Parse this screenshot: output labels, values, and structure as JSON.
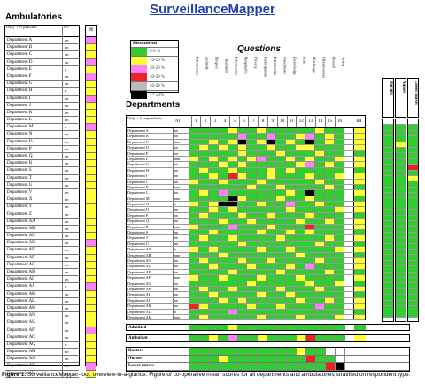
{
  "title": "SurveillanceMapper",
  "ambulatories": {
    "heading": "Ambulatories",
    "col_name": "Only > 9 patients",
    "col_n": "Nr",
    "col_pi": "PI",
    "rows": [
      {
        "name": "Department A",
        "n": "nn",
        "pi": "#ff80ff"
      },
      {
        "name": "Department B",
        "n": "nn",
        "pi": "#ffff33"
      },
      {
        "name": "Department C",
        "n": "nn",
        "pi": "#ffff33"
      },
      {
        "name": "Department D",
        "n": "nn",
        "pi": "#ff80ff"
      },
      {
        "name": "Department E",
        "n": "n",
        "pi": "#ffff33"
      },
      {
        "name": "Department F",
        "n": "nn",
        "pi": "#ff80ff"
      },
      {
        "name": "Department G",
        "n": "nn",
        "pi": "#ffff33"
      },
      {
        "name": "Department H",
        "n": "n",
        "pi": "#ffff33"
      },
      {
        "name": "Department I",
        "n": "nn",
        "pi": "#ff80ff"
      },
      {
        "name": "Department J",
        "n": "nn",
        "pi": "#ffff33"
      },
      {
        "name": "Department K",
        "n": "nn",
        "pi": "#ffff33"
      },
      {
        "name": "Department L",
        "n": "nn",
        "pi": "#ffff33"
      },
      {
        "name": "Department M",
        "n": "n",
        "pi": "#ff80ff"
      },
      {
        "name": "Department N",
        "n": "nn",
        "pi": "#ffff33"
      },
      {
        "name": "Department O",
        "n": "nn",
        "pi": "#ffff33"
      },
      {
        "name": "Department P",
        "n": "nn",
        "pi": "#ffff33"
      },
      {
        "name": "Department Q",
        "n": "nn",
        "pi": "#ffff33"
      },
      {
        "name": "Department R",
        "n": "nn",
        "pi": "#ffff33"
      },
      {
        "name": "Department S",
        "n": "nn",
        "pi": "#ffff33"
      },
      {
        "name": "Department T",
        "n": "nn",
        "pi": "#ffff33"
      },
      {
        "name": "Department U",
        "n": "nn",
        "pi": "#ffff33"
      },
      {
        "name": "Department V",
        "n": "nn",
        "pi": "#ffff33"
      },
      {
        "name": "Department X",
        "n": "nn",
        "pi": "#ffff33"
      },
      {
        "name": "Department Y",
        "n": "nn",
        "pi": "#ffff33"
      },
      {
        "name": "Department Z",
        "n": "nn",
        "pi": "#ffff33"
      },
      {
        "name": "Department AA",
        "n": "nn",
        "pi": "#ffff33"
      },
      {
        "name": "Department AB",
        "n": "nn",
        "pi": "#ffff33"
      },
      {
        "name": "Department AC",
        "n": "nn",
        "pi": "#ffff33"
      },
      {
        "name": "Department AD",
        "n": "nn",
        "pi": "#ff80ff"
      },
      {
        "name": "Department AE",
        "n": "nn",
        "pi": "#ffff33"
      },
      {
        "name": "Department AF",
        "n": "nn",
        "pi": "#ffff33"
      },
      {
        "name": "Department AG",
        "n": "nn",
        "pi": "#ffff33"
      },
      {
        "name": "Department AH",
        "n": "nn",
        "pi": "#ffff33"
      },
      {
        "name": "Department AI",
        "n": "nn",
        "pi": "#ffff33"
      },
      {
        "name": "Department AJ",
        "n": "n",
        "pi": "#ff80ff"
      },
      {
        "name": "Department AK",
        "n": "nn",
        "pi": "#ffff33"
      },
      {
        "name": "Department AL",
        "n": "nn",
        "pi": "#ffff33"
      },
      {
        "name": "Department AM",
        "n": "nn",
        "pi": "#ffff33"
      },
      {
        "name": "Department AN",
        "n": "nn",
        "pi": "#ffff33"
      },
      {
        "name": "Department AU",
        "n": "nn",
        "pi": "#ffff33"
      },
      {
        "name": "Department AF",
        "n": "nn",
        "pi": "#ff80ff"
      },
      {
        "name": "Department AO",
        "n": "nn",
        "pi": "#ffff33"
      },
      {
        "name": "Department AQ",
        "n": "n",
        "pi": "#ffff33"
      },
      {
        "name": "Department AR",
        "n": "nn",
        "pi": "#ffff33"
      },
      {
        "name": "Department AS",
        "n": "nn",
        "pi": "#ffff33"
      },
      {
        "name": "Department AT",
        "n": "nn",
        "pi": "#ff80ff"
      },
      {
        "name": "Department AU",
        "n": "nn",
        "pi": "#ffff33"
      }
    ]
  },
  "legend": {
    "title": "Dissatisfied",
    "items": [
      {
        "label": "0-9 %",
        "color": "#33cc33"
      },
      {
        "label": "10-19 %",
        "color": "#ffff33"
      },
      {
        "label": "20-29 %",
        "color": "#ff80ff"
      },
      {
        "label": "30-39 %",
        "color": "#ee2222"
      },
      {
        "label": "40-49 %",
        "color": "#bbbbbb"
      },
      {
        "label": ">= 50%",
        "color": "#000000"
      }
    ]
  },
  "questions_heading": "Questions",
  "questions": [
    "Information",
    "Attitude",
    "Respect",
    "Treatment",
    "Information",
    "Hospitality",
    "Privacy",
    "Participation",
    "Information",
    "Conditions",
    "Knowledge",
    "Pain",
    "Discharge",
    "Effectiveness",
    "Overall",
    "Safety"
  ],
  "departments": {
    "heading": "Departments",
    "col_name": "Only > 5 respondents",
    "col_n": "Nr",
    "col_pi": "PI",
    "question_numbers": [
      "1",
      "2",
      "3",
      "4",
      "5",
      "6",
      "7",
      "8",
      "9",
      "10",
      "11",
      "12",
      "13",
      "14",
      "15",
      "16"
    ],
    "rows": [
      {
        "name": "Department A",
        "n": "nn",
        "cells": "GGGGYGGYGGGGGYGG",
        "pi": "Y",
        "r": "GGG"
      },
      {
        "name": "Department B",
        "n": "nn",
        "cells": "GGGGGPGGPGGYPGYG",
        "pi": "Y",
        "r": "GGG"
      },
      {
        "name": "Department C",
        "n": "nnn",
        "cells": "GGYGYKGYKGYGKGYG",
        "pi": "Y",
        "r": "GGG"
      },
      {
        "name": "Department D",
        "n": "nn",
        "cells": "GYGYGYGGYGGYYGGG",
        "pi": "Y",
        "r": "GYG"
      },
      {
        "name": "Department E",
        "n": "nn",
        "cells": "GGGGGYGGGYGGGYGG",
        "pi": "G",
        "r": "GGG"
      },
      {
        "name": "Department F",
        "n": "nnn",
        "cells": "YGYGYGYPGGYGYGGY",
        "pi": "Y",
        "r": "GGG"
      },
      {
        "name": "Department G",
        "n": "nn",
        "cells": "GGGYGYGGGGGYPGYG",
        "pi": "Y",
        "r": "GGG"
      },
      {
        "name": "Department H",
        "n": "nn",
        "cells": "GYGGYGGGYGYGGGGG",
        "pi": "G",
        "r": "GGR"
      },
      {
        "name": "Department I",
        "n": "nn",
        "cells": "GGYGRYGGYGGGYGGY",
        "pi": "Y",
        "r": "GGG"
      },
      {
        "name": "Department J",
        "n": "nn",
        "cells": "YGGYGGGYGGGGGYGG",
        "pi": "Y",
        "r": "GGY"
      },
      {
        "name": "Department K",
        "n": "nnn",
        "cells": "GGGGGGYGGYGGGGYG",
        "pi": "G",
        "r": "GGG"
      },
      {
        "name": "Department L",
        "n": "nn",
        "cells": "GYGPGGGGGGYGKGGG",
        "pi": "Y",
        "r": "GGG"
      },
      {
        "name": "Department M",
        "n": "nnn",
        "cells": "GGGGKYGGGYGGYGGG",
        "pi": "G",
        "r": "GGG"
      },
      {
        "name": "Department N",
        "n": "n",
        "cells": "YGYKKGGYGGPGGYGG",
        "pi": "Y",
        "r": "GGG"
      },
      {
        "name": "Department O",
        "n": "nn",
        "cells": "GGYGYGGGGGYGGGGY",
        "pi": "Y",
        "r": "GGG"
      },
      {
        "name": "Department P",
        "n": "nn",
        "cells": "GYGGGYGGYGGGYGGG",
        "pi": "G",
        "r": "GGG"
      },
      {
        "name": "Department Q",
        "n": "nn",
        "cells": "GGGYGGYGGGGYGGYG",
        "pi": "Y",
        "r": "GGG"
      },
      {
        "name": "Department R",
        "n": "nnn",
        "cells": "YGGGPGGGYGGGRGGG",
        "pi": "Y",
        "r": "GGG"
      },
      {
        "name": "Department S",
        "n": "nn",
        "cells": "GGYGGGGYGGYGYGGG",
        "pi": "G",
        "r": "GGG"
      },
      {
        "name": "Department T",
        "n": "nn",
        "cells": "GYGGYGGGGYGGGGYG",
        "pi": "Y",
        "r": "GGG"
      },
      {
        "name": "Department U",
        "n": "nn",
        "cells": "GGGGGYGGGGGGGYGG",
        "pi": "G",
        "r": "GGG"
      },
      {
        "name": "Department AA",
        "n": "n",
        "cells": "YGYGGGGYGGYGGGGY",
        "pi": "Y",
        "r": "GGG"
      },
      {
        "name": "Department AB",
        "n": "nnn",
        "cells": "GGGYGGGGGGGYGGGG",
        "pi": "G",
        "r": "GGG"
      },
      {
        "name": "Department AC",
        "n": "nn",
        "cells": "GYGGGYGGYGGGGYGG",
        "pi": "Y",
        "r": "GGG"
      },
      {
        "name": "Department AD",
        "n": "nn",
        "cells": "GGYGGGYGGGYGPGGG",
        "pi": "Y",
        "r": "GGG"
      },
      {
        "name": "Department AE",
        "n": "nn",
        "cells": "GGGGYGGGGYGGGGYG",
        "pi": "G",
        "r": "GGG"
      },
      {
        "name": "Department AF",
        "n": "nnn",
        "cells": "YGGYGGGYGGGYGGGG",
        "pi": "Y",
        "r": "GGG"
      },
      {
        "name": "Department AG",
        "n": "nn",
        "cells": "GGGGGGYGGGGGYGGY",
        "pi": "G",
        "r": "GGG"
      },
      {
        "name": "Department AH",
        "n": "nn",
        "cells": "GYGGYGGGGYGGGYGG",
        "pi": "Y",
        "r": "GGG"
      },
      {
        "name": "Department AI",
        "n": "nn",
        "cells": "GGYGGGGYGGYGGGGG",
        "pi": "G",
        "r": "GGG"
      },
      {
        "name": "Department AJ",
        "n": "nn",
        "cells": "GGGYGYGGGGGYGGYG",
        "pi": "Y",
        "r": "GGG"
      },
      {
        "name": "Department AK",
        "n": "nn",
        "cells": "RYGGGGYGGYGGGPGG",
        "pi": "Y",
        "r": "GGG"
      },
      {
        "name": "Department AL",
        "n": "n",
        "cells": "GGGGPGGGGGGGGGGG",
        "pi": "G",
        "r": "GGG"
      },
      {
        "name": "Department AM",
        "n": "nnn",
        "cells": "GYGGGGGYGGGYGGGY",
        "pi": "Y",
        "r": "GGG"
      }
    ]
  },
  "roles": [
    "Doctors",
    "Nurses",
    "Lower nurses"
  ],
  "admitted": {
    "label": "Admitted",
    "cells": "GGGGYGGGGGGGGGGG",
    "pi": "G"
  },
  "ambulant": {
    "label": "Ambulant",
    "cells": "GGYGPGGYGGGYRGGG",
    "pi": "Y"
  },
  "groups": [
    {
      "label": "Doctors",
      "cells": "GGGGGGGGGGGYGGWW"
    },
    {
      "label": "Nurses",
      "cells": "GGGYGGGGGGGGRGGW"
    },
    {
      "label": "Lower nurses",
      "cells": "GGGGGGGGGGGGGGRK"
    }
  ],
  "caption": {
    "label": "Figure 1.",
    "text": "SurveillanceMapper-tool, overview-in-a-glance. Figure of co-operative mean scores for all departments and ambulatories stratified on respondent type."
  },
  "colors": {
    "G": "#33cc33",
    "Y": "#ffff33",
    "P": "#ff80ff",
    "R": "#ee2222",
    "A": "#bbbbbb",
    "K": "#000000",
    "W": "#ffffff"
  }
}
